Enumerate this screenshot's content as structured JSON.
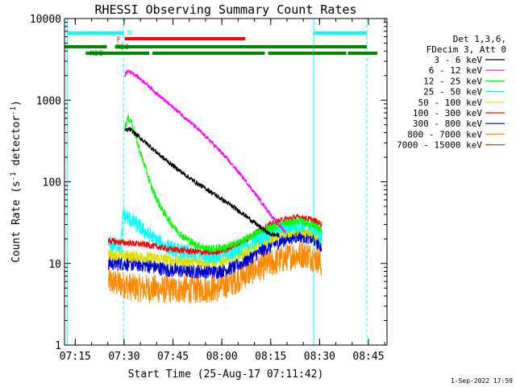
{
  "chart_data": {
    "type": "line",
    "title": "RHESSI Observing Summary Count Rates",
    "xlabel": "Start Time (25-Aug-17 07:11:42)",
    "ylabel_main": "Count Rate (s",
    "ylabel_sup1": "-1",
    "ylabel_mid": " detector",
    "ylabel_sup2": "-1",
    "ylabel_end": ")",
    "ylog": true,
    "ylim": [
      1,
      10000
    ],
    "xlim_minutes": [
      0,
      99
    ],
    "xticks": [
      {
        "label": "07:15",
        "t": 3.3
      },
      {
        "label": "07:30",
        "t": 18.3
      },
      {
        "label": "07:45",
        "t": 33.3
      },
      {
        "label": "08:00",
        "t": 48.3
      },
      {
        "label": "08:15",
        "t": 63.3
      },
      {
        "label": "08:30",
        "t": 78.3
      },
      {
        "label": "08:45",
        "t": 93.3
      }
    ],
    "yticks": [
      {
        "label": "1",
        "v": 1
      },
      {
        "label": "10",
        "v": 10
      },
      {
        "label": "100",
        "v": 100
      },
      {
        "label": "1000",
        "v": 1000
      },
      {
        "label": "10000",
        "v": 10000
      }
    ],
    "legend": {
      "placement": "right",
      "header1": "Det 1,3,6,",
      "header2": "FDecim 3, Att 0",
      "entries": [
        {
          "label": "3 - 6 keV",
          "color": "#000000"
        },
        {
          "label": "6 - 12 keV",
          "color": "#ff00ff"
        },
        {
          "label": "12 - 25 keV",
          "color": "#00ff00"
        },
        {
          "label": "25 - 50 keV",
          "color": "#00ffff"
        },
        {
          "label": "50 - 100 keV",
          "color": "#dddd00"
        },
        {
          "label": "100 - 300 keV",
          "color": "#ff0000"
        },
        {
          "label": "300 - 800 keV",
          "color": "#0000cc"
        },
        {
          "label": "800 - 7000 keV",
          "color": "#ff8800"
        },
        {
          "label": "7000 - 15000 keV",
          "color": "#996600"
        }
      ]
    },
    "series": [
      {
        "color": "#ff8800",
        "noise": 0.35,
        "points": [
          [
            13.5,
            6
          ],
          [
            18,
            5.5
          ],
          [
            22,
            5
          ],
          [
            30,
            4.8
          ],
          [
            40,
            4.8
          ],
          [
            47,
            5
          ],
          [
            52,
            6
          ],
          [
            56,
            7.5
          ],
          [
            60,
            9
          ],
          [
            65,
            10.5
          ],
          [
            70,
            12.5
          ],
          [
            74,
            13
          ],
          [
            76,
            12
          ],
          [
            78,
            11
          ],
          [
            79,
            9
          ]
        ]
      },
      {
        "color": "#0000cc",
        "noise": 0.18,
        "points": [
          [
            13.5,
            10
          ],
          [
            18,
            10
          ],
          [
            25,
            9.5
          ],
          [
            32,
            8.3
          ],
          [
            40,
            8
          ],
          [
            47,
            8
          ],
          [
            52,
            9
          ],
          [
            56,
            11
          ],
          [
            60,
            14
          ],
          [
            64,
            17
          ],
          [
            68,
            20
          ],
          [
            72,
            22
          ],
          [
            75,
            21
          ],
          [
            77,
            19
          ],
          [
            79,
            16
          ]
        ]
      },
      {
        "color": "#dddd00",
        "noise": 0.14,
        "points": [
          [
            13.5,
            13
          ],
          [
            18,
            12.5
          ],
          [
            25,
            12
          ],
          [
            32,
            11
          ],
          [
            40,
            10.5
          ],
          [
            47,
            10.5
          ],
          [
            52,
            12
          ],
          [
            56,
            14
          ],
          [
            60,
            18
          ],
          [
            64,
            21
          ],
          [
            68,
            24
          ],
          [
            72,
            25
          ],
          [
            75,
            24
          ],
          [
            77,
            22
          ],
          [
            79,
            18
          ]
        ]
      },
      {
        "color": "#00ffff",
        "noise": 0.2,
        "points": [
          [
            13.5,
            17
          ],
          [
            17.5,
            17
          ],
          [
            18,
            40
          ],
          [
            20,
            35
          ],
          [
            23,
            28
          ],
          [
            26,
            22
          ],
          [
            30,
            17
          ],
          [
            35,
            14
          ],
          [
            40,
            13
          ],
          [
            47,
            12.5
          ],
          [
            52,
            14
          ],
          [
            56,
            17
          ],
          [
            60,
            21
          ],
          [
            64,
            25
          ],
          [
            68,
            28
          ],
          [
            72,
            30
          ],
          [
            75,
            29
          ],
          [
            77,
            27
          ],
          [
            79,
            20
          ]
        ]
      },
      {
        "color": "#ff0000",
        "noise": 0.08,
        "points": [
          [
            13.5,
            19
          ],
          [
            18,
            18
          ],
          [
            25,
            17
          ],
          [
            32,
            15
          ],
          [
            40,
            14
          ],
          [
            45,
            13.5
          ],
          [
            50,
            15
          ],
          [
            56,
            20
          ],
          [
            60,
            26
          ],
          [
            64,
            31
          ],
          [
            68,
            35
          ],
          [
            72,
            37
          ],
          [
            75,
            35
          ],
          [
            77,
            33
          ],
          [
            79,
            30
          ]
        ]
      },
      {
        "color": "#00ff00",
        "noise": 0.1,
        "points": [
          [
            18.5,
            450
          ],
          [
            19.5,
            600
          ],
          [
            20.5,
            560
          ],
          [
            21.5,
            400
          ],
          [
            23,
            250
          ],
          [
            25,
            140
          ],
          [
            27,
            80
          ],
          [
            30,
            45
          ],
          [
            33,
            30
          ],
          [
            36,
            22
          ],
          [
            40,
            17
          ],
          [
            45,
            15
          ],
          [
            50,
            16
          ],
          [
            56,
            20
          ],
          [
            60,
            25
          ],
          [
            64,
            28
          ],
          [
            68,
            31
          ],
          [
            72,
            33
          ],
          [
            75,
            31
          ],
          [
            77,
            29
          ],
          [
            79,
            25
          ]
        ]
      },
      {
        "color": "#000000",
        "noise": 0.06,
        "points": [
          [
            18.5,
            420
          ],
          [
            20,
            440
          ],
          [
            22,
            380
          ],
          [
            25,
            300
          ],
          [
            30,
            200
          ],
          [
            35,
            140
          ],
          [
            40,
            100
          ],
          [
            45,
            75
          ],
          [
            50,
            55
          ],
          [
            55,
            40
          ],
          [
            60,
            28
          ],
          [
            63,
            23
          ],
          [
            66,
            22
          ]
        ]
      },
      {
        "color": "#ff00ff",
        "noise": 0.05,
        "points": [
          [
            18.5,
            2000
          ],
          [
            19.5,
            2300
          ],
          [
            21,
            2150
          ],
          [
            25,
            1600
          ],
          [
            30,
            1050
          ],
          [
            35,
            720
          ],
          [
            40,
            480
          ],
          [
            45,
            310
          ],
          [
            50,
            190
          ],
          [
            55,
            110
          ],
          [
            60,
            60
          ],
          [
            65,
            32
          ],
          [
            68,
            24
          ]
        ]
      }
    ],
    "vlines": [
      {
        "t": 0.9,
        "style": "solid"
      },
      {
        "t": 18.1,
        "style": "dashed"
      },
      {
        "t": 76.5,
        "style": "solid"
      },
      {
        "t": 92.8,
        "style": "dashed"
      }
    ],
    "flags": [
      {
        "label": "N",
        "color": "#00ffff",
        "segments": [
          [
            0.9,
            18.1
          ],
          [
            76.5,
            92.8
          ]
        ]
      },
      {
        "label": "F",
        "color": "#ff0000",
        "segments": [
          [
            18.5,
            55.5
          ]
        ]
      },
      {
        "label": "RDO",
        "color": "#008800",
        "segments": [
          [
            0,
            13
          ],
          [
            15.5,
            92.8
          ]
        ]
      },
      {
        "label": "RDB",
        "color": "#008800",
        "segments": [
          [
            6.5,
            26
          ],
          [
            27,
            61.5
          ],
          [
            62.5,
            86.5
          ],
          [
            87,
            96
          ]
        ]
      }
    ],
    "timestamp": "1-Sep-2022 17:59"
  }
}
